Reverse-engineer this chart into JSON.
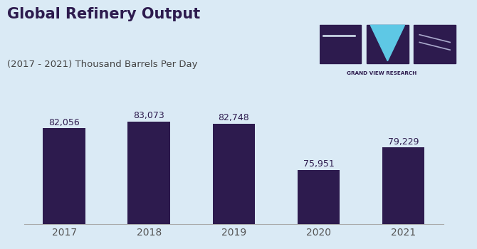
{
  "title": "Global Refinery Output",
  "subtitle": "(2017 - 2021) Thousand Barrels Per Day",
  "categories": [
    "2017",
    "2018",
    "2019",
    "2020",
    "2021"
  ],
  "values": [
    82056,
    83073,
    82748,
    75951,
    79229
  ],
  "bar_color": "#2d1b4e",
  "background_color": "#daeaf5",
  "title_color": "#2d1b4e",
  "subtitle_color": "#444444",
  "label_color": "#2d1b4e",
  "tick_color": "#555555",
  "ylim": [
    68000,
    87000
  ],
  "bar_width": 0.5,
  "title_fontsize": 15,
  "subtitle_fontsize": 9.5,
  "value_fontsize": 9,
  "tick_fontsize": 10,
  "brand_text": "GRAND VIEW RESEARCH",
  "brand_color": "#2d1b4e",
  "logo_sq_color": "#2d1b4e",
  "logo_cyan": "#5ec8e5"
}
